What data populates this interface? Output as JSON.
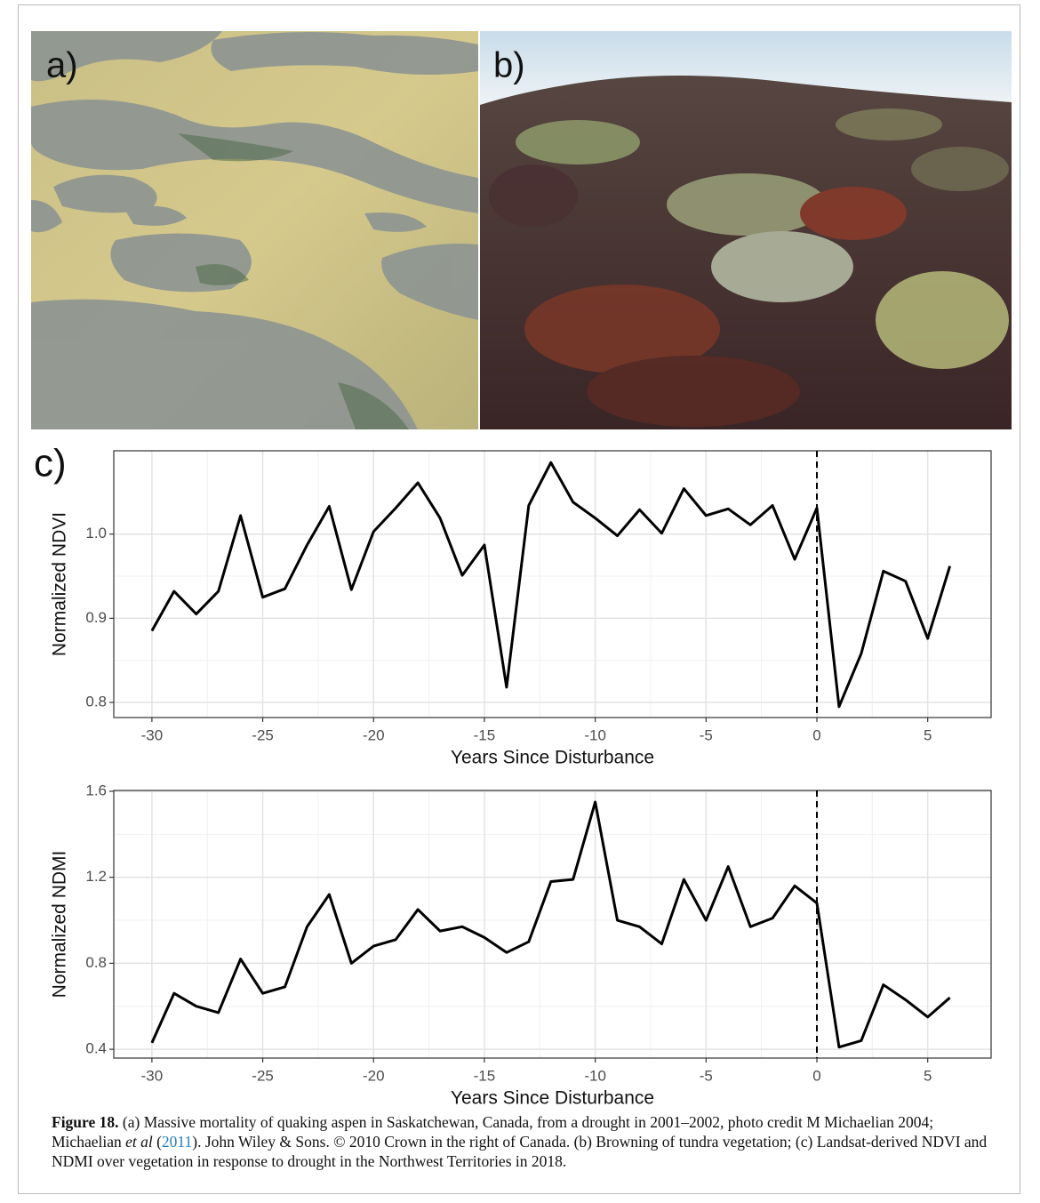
{
  "panels": [
    "a)",
    "b)",
    "c)"
  ],
  "caption": {
    "label": "Figure 18.",
    "parts": [
      " (a) Massive mortality of quaking aspen in Saskatchewan, Canada, from a drought in 2001–2002, photo credit M Michaelian 2004; Michaelian ",
      "et al",
      " (",
      "2011",
      "). John Wiley & Sons. © 2010 Crown in the right of Canada. (b) Browning of tundra vegetation; (c) Landsat-derived NDVI and NDMI over vegetation in response to drought in the Northwest Territories in 2018."
    ]
  },
  "chart_data": [
    {
      "type": "line",
      "x_label": "Years Since Disturbance",
      "y_label": "Normalized NDVI",
      "color": "#000000",
      "grid": true,
      "vline": 0,
      "x": [
        -30,
        -29,
        -28,
        -27,
        -26,
        -25,
        -24,
        -23,
        -22,
        -21,
        -20,
        -19,
        -18,
        -17,
        -16,
        -15,
        -14,
        -13,
        -12,
        -11,
        -10,
        -9,
        -8,
        -7,
        -6,
        -5,
        -4,
        -3,
        -2,
        -1,
        0,
        1,
        2,
        3,
        4,
        5,
        6
      ],
      "values": [
        0.885,
        0.932,
        0.905,
        0.932,
        1.022,
        0.925,
        0.935,
        0.987,
        1.033,
        0.934,
        1.003,
        1.031,
        1.061,
        1.019,
        0.951,
        0.987,
        0.818,
        1.034,
        1.085,
        1.038,
        1.019,
        0.998,
        1.029,
        1.001,
        1.054,
        1.022,
        1.03,
        1.011,
        1.034,
        0.97,
        1.031,
        0.795,
        0.858,
        0.956,
        0.944,
        0.876,
        0.962
      ],
      "xlim": [
        -31.72,
        7.86
      ],
      "xticks": [
        -30,
        -25,
        -20,
        -15,
        -10,
        -5,
        0,
        5
      ],
      "ylim": [
        0.782,
        1.099
      ],
      "yticks": [
        0.8,
        0.9,
        {
          "value": 1,
          "label": "1.0"
        }
      ]
    },
    {
      "type": "line",
      "x_label": "Years Since Disturbance",
      "y_label": "Normalized NDMI",
      "color": "#000000",
      "grid": true,
      "vline": 0,
      "x": [
        -30,
        -29,
        -28,
        -27,
        -26,
        -25,
        -24,
        -23,
        -22,
        -21,
        -20,
        -19,
        -18,
        -17,
        -16,
        -15,
        -14,
        -13,
        -12,
        -11,
        -10,
        -9,
        -8,
        -7,
        -6,
        -5,
        -4,
        -3,
        -2,
        -1,
        0,
        1,
        2,
        3,
        4,
        5,
        6
      ],
      "values": [
        0.43,
        0.66,
        0.6,
        0.57,
        0.82,
        0.66,
        0.69,
        0.97,
        1.12,
        0.8,
        0.88,
        0.91,
        1.05,
        0.95,
        0.97,
        0.92,
        0.85,
        0.9,
        1.18,
        1.19,
        1.55,
        1.0,
        0.97,
        0.89,
        1.19,
        1.0,
        1.25,
        0.97,
        1.01,
        1.16,
        1.08,
        0.41,
        0.44,
        0.7,
        0.63,
        0.55,
        0.64
      ],
      "xlim": [
        -31.72,
        7.86
      ],
      "xticks": [
        -30,
        -25,
        -20,
        -15,
        -10,
        -5,
        0,
        5
      ],
      "ylim": [
        0.359,
        1.604
      ],
      "yticks": [
        0.4,
        0.8,
        1.2,
        1.6
      ]
    }
  ]
}
